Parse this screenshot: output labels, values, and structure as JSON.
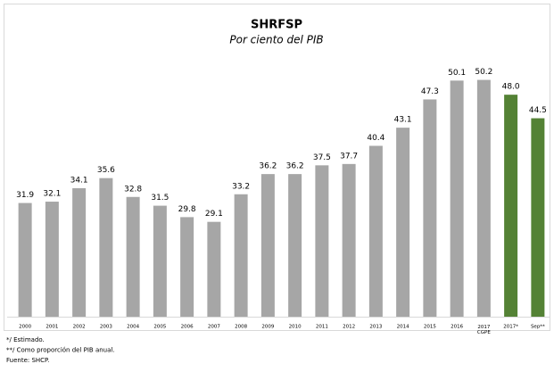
{
  "chart_data": {
    "type": "bar",
    "title": "SHRFSP",
    "subtitle": "Por ciento del PIB",
    "categories": [
      "2000",
      "2001",
      "2002",
      "2003",
      "2004",
      "2005",
      "2006",
      "2007",
      "2008",
      "2009",
      "2010",
      "2011",
      "2012",
      "2013",
      "2014",
      "2015",
      "2016",
      "2017 CGPE",
      "2017*",
      "Sep**"
    ],
    "values": [
      31.9,
      32.1,
      34.1,
      35.6,
      32.8,
      31.5,
      29.8,
      29.1,
      33.2,
      36.2,
      36.2,
      37.5,
      37.7,
      40.4,
      43.1,
      47.3,
      50.1,
      50.2,
      48.0,
      44.5
    ],
    "value_labels": [
      "31.9",
      "32.1",
      "34.1",
      "35.6",
      "32.8",
      "31.5",
      "29.8",
      "29.1",
      "33.2",
      "36.2",
      "36.2",
      "37.5",
      "37.7",
      "40.4",
      "43.1",
      "47.3",
      "50.1",
      "50.2",
      "48.0",
      "44.5"
    ],
    "colors": [
      "#a6a6a6",
      "#a6a6a6",
      "#a6a6a6",
      "#a6a6a6",
      "#a6a6a6",
      "#a6a6a6",
      "#a6a6a6",
      "#a6a6a6",
      "#a6a6a6",
      "#a6a6a6",
      "#a6a6a6",
      "#a6a6a6",
      "#a6a6a6",
      "#a6a6a6",
      "#a6a6a6",
      "#a6a6a6",
      "#a6a6a6",
      "#a6a6a6",
      "#548235",
      "#548235"
    ],
    "ylim": [
      15,
      52
    ],
    "notes": [
      "*/ Estimado.",
      "**/ Como proporción del PIB anual.",
      "Fuente: SHCP."
    ]
  }
}
